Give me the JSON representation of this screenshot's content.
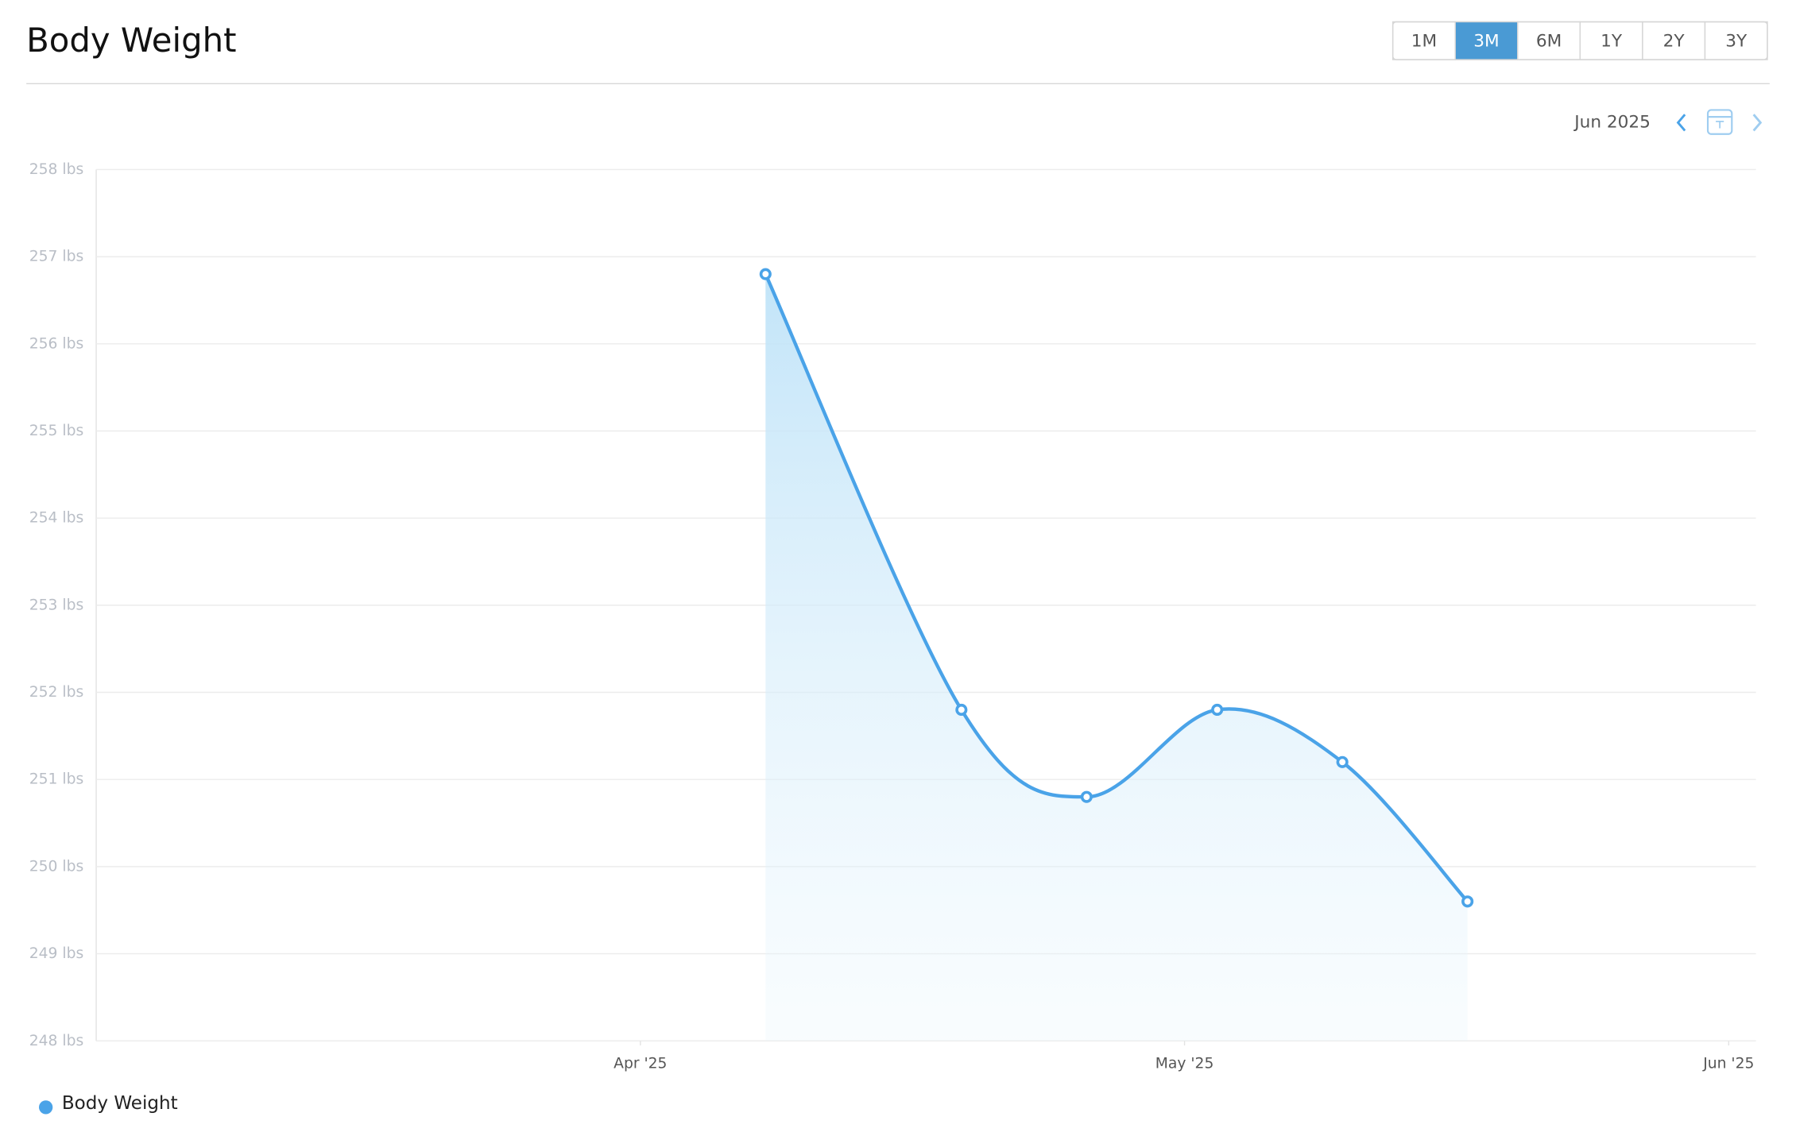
{
  "header": {
    "title": "Body Weight",
    "ranges": [
      "1M",
      "3M",
      "6M",
      "1Y",
      "2Y",
      "3Y"
    ],
    "active_range": 1,
    "period": "Jun 2025"
  },
  "chart_data": {
    "type": "line",
    "x": [
      4.23,
      4.59,
      4.82,
      5.06,
      5.29,
      5.52
    ],
    "series": [
      {
        "name": "Body Weight",
        "color": "#4aa3e8",
        "values": [
          256.8,
          251.8,
          250.8,
          251.8,
          251.2,
          249.6
        ]
      }
    ],
    "xlim": [
      3,
      6.05
    ],
    "xticks": [
      {
        "value": 4,
        "label": "Apr '25"
      },
      {
        "value": 5,
        "label": "May '25"
      },
      {
        "value": 6,
        "label": "Jun '25"
      }
    ],
    "ylim": [
      248,
      258
    ],
    "yticks": [
      {
        "value": 248,
        "label": "248 lbs"
      },
      {
        "value": 249,
        "label": "249 lbs"
      },
      {
        "value": 250,
        "label": "250 lbs"
      },
      {
        "value": 251,
        "label": "251 lbs"
      },
      {
        "value": 252,
        "label": "252 lbs"
      },
      {
        "value": 253,
        "label": "253 lbs"
      },
      {
        "value": 254,
        "label": "254 lbs"
      },
      {
        "value": 255,
        "label": "255 lbs"
      },
      {
        "value": 256,
        "label": "256 lbs"
      },
      {
        "value": 257,
        "label": "257 lbs"
      },
      {
        "value": 258,
        "label": "258 lbs"
      }
    ],
    "grid": true
  }
}
